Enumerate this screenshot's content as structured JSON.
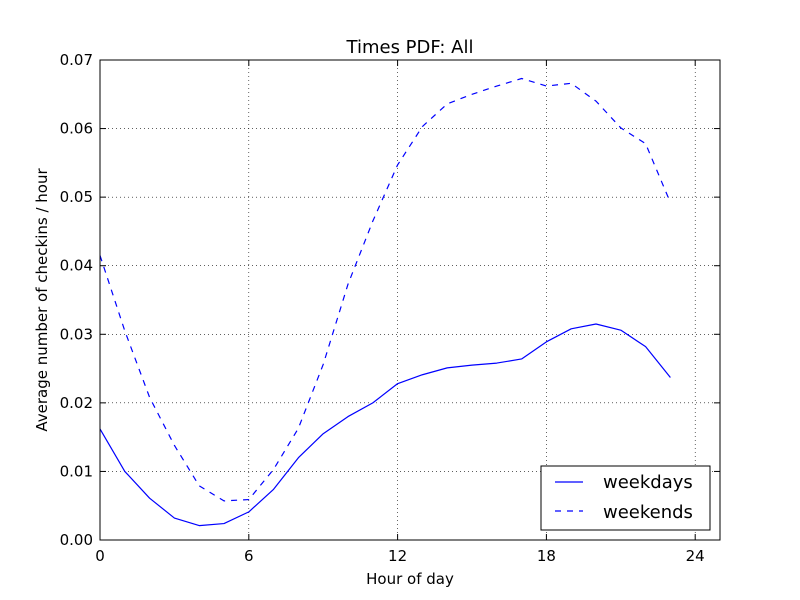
{
  "chart_data": {
    "type": "line",
    "title": "Times PDF: All",
    "xlabel": "Hour of day",
    "ylabel": "Average number of checkins / hour",
    "xlim": [
      0,
      25
    ],
    "ylim": [
      0,
      0.07
    ],
    "xticks": [
      0,
      6,
      12,
      18,
      24
    ],
    "xtick_labels": [
      "0",
      "6",
      "12",
      "18",
      "24"
    ],
    "yticks": [
      0,
      0.01,
      0.02,
      0.03,
      0.04,
      0.05,
      0.06,
      0.07
    ],
    "ytick_labels": [
      "0.00",
      "0.01",
      "0.02",
      "0.03",
      "0.04",
      "0.05",
      "0.06",
      "0.07"
    ],
    "grid": true,
    "legend_position": "lower-right",
    "x": [
      0,
      1,
      2,
      3,
      4,
      5,
      6,
      7,
      8,
      9,
      10,
      11,
      12,
      13,
      14,
      15,
      16,
      17,
      18,
      19,
      20,
      21,
      22,
      23
    ],
    "series": [
      {
        "name": "weekdays",
        "style": "solid",
        "color": "#0000ff",
        "values": [
          0.0162,
          0.01,
          0.0061,
          0.0032,
          0.0021,
          0.0024,
          0.0041,
          0.0074,
          0.012,
          0.0155,
          0.018,
          0.02,
          0.0228,
          0.0241,
          0.0251,
          0.0255,
          0.0258,
          0.0264,
          0.0289,
          0.0308,
          0.0315,
          0.0306,
          0.0282,
          0.0237
        ]
      },
      {
        "name": "weekends",
        "style": "dashed",
        "color": "#0000ff",
        "values": [
          0.0415,
          0.0305,
          0.0208,
          0.0138,
          0.0079,
          0.0057,
          0.0059,
          0.0103,
          0.0163,
          0.0256,
          0.0373,
          0.0465,
          0.0547,
          0.0603,
          0.0636,
          0.065,
          0.0662,
          0.0673,
          0.0662,
          0.0666,
          0.064,
          0.0601,
          0.0578,
          0.0492
        ]
      }
    ]
  }
}
